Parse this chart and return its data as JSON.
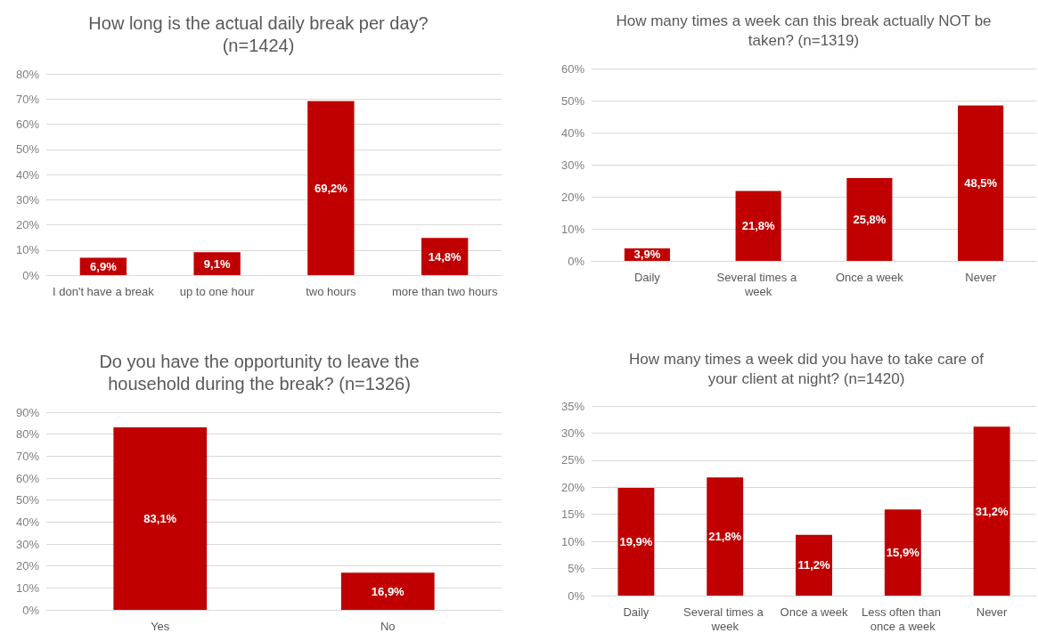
{
  "chart_data": [
    {
      "type": "bar",
      "title": "How long is the actual daily break per day? (n=1424)",
      "categories": [
        "I don't have a break",
        "up to one hour",
        "two hours",
        "more than two hours"
      ],
      "values": [
        6.9,
        9.1,
        69.2,
        14.8
      ],
      "value_labels": [
        "6,9%",
        "9,1%",
        "69,2%",
        "14,8%"
      ],
      "color": "#c00000",
      "ylim": [
        0,
        80
      ],
      "yticks": [
        {
          "value": 0,
          "label": "0%"
        },
        {
          "value": 10,
          "label": "10%"
        },
        {
          "value": 20,
          "label": "20%"
        },
        {
          "value": 30,
          "label": "30%"
        },
        {
          "value": 40,
          "label": "40%"
        },
        {
          "value": 50,
          "label": "50%"
        },
        {
          "value": 60,
          "label": "60%"
        },
        {
          "value": 70,
          "label": "70%"
        },
        {
          "value": 80,
          "label": "80%"
        }
      ],
      "grid": "y"
    },
    {
      "type": "bar",
      "title": "How many times a week can this break actually NOT be taken? (n=1319)",
      "categories": [
        "Daily",
        "Several times a week",
        "Once a week",
        "Never"
      ],
      "values": [
        3.9,
        21.8,
        25.8,
        48.5
      ],
      "value_labels": [
        "3,9%",
        "21,8%",
        "25,8%",
        "48,5%"
      ],
      "color": "#c00000",
      "ylim": [
        0,
        60
      ],
      "yticks": [
        {
          "value": 0,
          "label": "0%"
        },
        {
          "value": 10,
          "label": "10%"
        },
        {
          "value": 20,
          "label": "20%"
        },
        {
          "value": 30,
          "label": "30%"
        },
        {
          "value": 40,
          "label": "40%"
        },
        {
          "value": 50,
          "label": "50%"
        },
        {
          "value": 60,
          "label": "60%"
        }
      ],
      "grid": "y"
    },
    {
      "type": "bar",
      "title": "Do you have the opportunity to leave the household during the break? (n=1326)",
      "categories": [
        "Yes",
        "No"
      ],
      "values": [
        83.1,
        16.9
      ],
      "value_labels": [
        "83,1%",
        "16,9%"
      ],
      "color": "#c00000",
      "ylim": [
        0,
        90
      ],
      "yticks": [
        {
          "value": 0,
          "label": "0%"
        },
        {
          "value": 10,
          "label": "10%"
        },
        {
          "value": 20,
          "label": "20%"
        },
        {
          "value": 30,
          "label": "30%"
        },
        {
          "value": 40,
          "label": "40%"
        },
        {
          "value": 50,
          "label": "50%"
        },
        {
          "value": 60,
          "label": "60%"
        },
        {
          "value": 70,
          "label": "70%"
        },
        {
          "value": 80,
          "label": "80%"
        },
        {
          "value": 90,
          "label": "90%"
        }
      ],
      "grid": "y"
    },
    {
      "type": "bar",
      "title": "How many times a week did you have to take care of your client at night? (n=1420)",
      "categories": [
        "Daily",
        "Several times a week",
        "Once a week",
        "Less often than once a week",
        "Never"
      ],
      "values": [
        19.9,
        21.8,
        11.2,
        15.9,
        31.2
      ],
      "value_labels": [
        "19,9%",
        "21,8%",
        "11,2%",
        "15,9%",
        "31,2%"
      ],
      "color": "#c00000",
      "ylim": [
        0,
        35
      ],
      "yticks": [
        {
          "value": 0,
          "label": "0%"
        },
        {
          "value": 5,
          "label": "5%"
        },
        {
          "value": 10,
          "label": "10%"
        },
        {
          "value": 15,
          "label": "15%"
        },
        {
          "value": 20,
          "label": "20%"
        },
        {
          "value": 25,
          "label": "25%"
        },
        {
          "value": 30,
          "label": "30%"
        },
        {
          "value": 35,
          "label": "35%"
        }
      ],
      "grid": "y"
    }
  ]
}
